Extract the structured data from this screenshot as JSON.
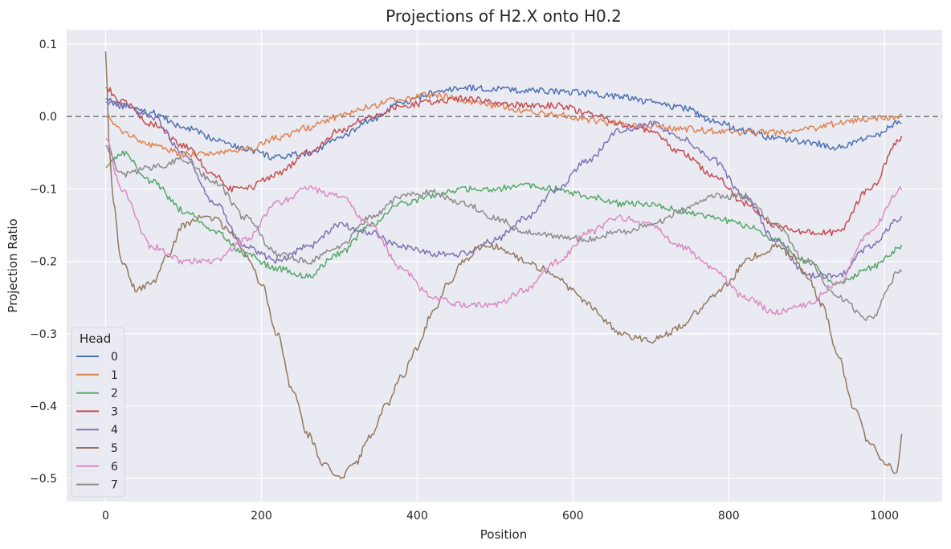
{
  "chart_data": {
    "type": "line",
    "title": "Projections of H2.X onto H0.2",
    "xlabel": "Position",
    "ylabel": "Projection Ratio",
    "xlim": [
      -50,
      1074
    ],
    "ylim": [
      -0.532,
      0.12
    ],
    "xticks": [
      0,
      200,
      400,
      600,
      800,
      1000
    ],
    "xtick_labels": [
      "0",
      "200",
      "400",
      "600",
      "800",
      "1000"
    ],
    "yticks": [
      0.1,
      0.0,
      -0.1,
      -0.2,
      -0.3,
      -0.4,
      -0.5
    ],
    "ytick_labels": [
      "0.1",
      "0.0",
      "−0.1",
      "−0.2",
      "−0.3",
      "−0.4",
      "−0.5"
    ],
    "reference_line": {
      "y": 0.0,
      "style": "dashed",
      "color": "#7f7f86"
    },
    "grid": true,
    "background": "#eaeaf2",
    "legend": {
      "title": "Head",
      "position": "lower-left"
    },
    "series": [
      {
        "name": "0",
        "color": "#4c72b0",
        "x": [
          0,
          20,
          60,
          100,
          140,
          180,
          220,
          260,
          300,
          340,
          380,
          420,
          460,
          500,
          540,
          580,
          620,
          660,
          700,
          740,
          780,
          820,
          860,
          900,
          940,
          980,
          1023
        ],
        "values": [
          0.025,
          0.015,
          0.005,
          -0.015,
          -0.03,
          -0.045,
          -0.057,
          -0.05,
          -0.03,
          -0.005,
          0.018,
          0.032,
          0.04,
          0.038,
          0.036,
          0.035,
          0.032,
          0.028,
          0.02,
          0.012,
          -0.005,
          -0.02,
          -0.03,
          -0.035,
          -0.042,
          -0.03,
          -0.005
        ]
      },
      {
        "name": "1",
        "color": "#dd8452",
        "x": [
          0,
          20,
          60,
          100,
          140,
          180,
          220,
          260,
          300,
          340,
          380,
          420,
          460,
          500,
          540,
          580,
          620,
          660,
          700,
          740,
          780,
          820,
          860,
          900,
          940,
          980,
          1023
        ],
        "values": [
          0.0,
          -0.02,
          -0.04,
          -0.052,
          -0.05,
          -0.045,
          -0.03,
          -0.015,
          0.0,
          0.015,
          0.025,
          0.03,
          0.022,
          0.015,
          0.008,
          0.002,
          -0.005,
          -0.01,
          -0.013,
          -0.017,
          -0.02,
          -0.022,
          -0.022,
          -0.018,
          -0.01,
          -0.003,
          0.0
        ]
      },
      {
        "name": "2",
        "color": "#55a868",
        "x": [
          0,
          20,
          60,
          100,
          140,
          180,
          220,
          260,
          300,
          340,
          380,
          420,
          460,
          500,
          540,
          580,
          620,
          660,
          700,
          740,
          780,
          820,
          860,
          900,
          940,
          980,
          1023
        ],
        "values": [
          -0.07,
          -0.05,
          -0.09,
          -0.13,
          -0.16,
          -0.19,
          -0.21,
          -0.22,
          -0.19,
          -0.15,
          -0.12,
          -0.11,
          -0.1,
          -0.1,
          -0.095,
          -0.1,
          -0.11,
          -0.12,
          -0.12,
          -0.13,
          -0.14,
          -0.15,
          -0.17,
          -0.2,
          -0.23,
          -0.21,
          -0.18
        ]
      },
      {
        "name": "3",
        "color": "#c44e52",
        "x": [
          0,
          20,
          60,
          100,
          140,
          160,
          180,
          220,
          260,
          300,
          340,
          380,
          420,
          460,
          500,
          540,
          580,
          620,
          660,
          700,
          740,
          780,
          820,
          860,
          900,
          940,
          980,
          1023
        ],
        "values": [
          0.04,
          0.02,
          -0.01,
          -0.04,
          -0.08,
          -0.1,
          -0.1,
          -0.08,
          -0.05,
          -0.02,
          0.0,
          0.015,
          0.02,
          0.025,
          0.02,
          0.015,
          0.015,
          0.005,
          -0.01,
          -0.02,
          -0.05,
          -0.08,
          -0.12,
          -0.15,
          -0.16,
          -0.16,
          -0.1,
          -0.03
        ]
      },
      {
        "name": "4",
        "color": "#8172b3",
        "x": [
          0,
          20,
          60,
          100,
          140,
          180,
          220,
          260,
          300,
          340,
          380,
          420,
          460,
          500,
          540,
          580,
          620,
          660,
          700,
          740,
          780,
          820,
          860,
          900,
          940,
          980,
          1023
        ],
        "values": [
          0.02,
          0.015,
          0.0,
          -0.05,
          -0.12,
          -0.18,
          -0.2,
          -0.18,
          -0.15,
          -0.16,
          -0.18,
          -0.19,
          -0.19,
          -0.17,
          -0.14,
          -0.1,
          -0.06,
          -0.02,
          -0.01,
          -0.03,
          -0.06,
          -0.11,
          -0.17,
          -0.22,
          -0.22,
          -0.18,
          -0.14
        ]
      },
      {
        "name": "5",
        "color": "#937860",
        "x": [
          0,
          5,
          10,
          20,
          40,
          60,
          80,
          100,
          120,
          140,
          160,
          180,
          200,
          220,
          240,
          260,
          280,
          300,
          320,
          340,
          360,
          380,
          400,
          420,
          440,
          460,
          480,
          500,
          520,
          540,
          560,
          580,
          600,
          620,
          640,
          660,
          680,
          700,
          720,
          740,
          760,
          780,
          800,
          820,
          840,
          860,
          880,
          900,
          920,
          940,
          960,
          980,
          1000,
          1015,
          1023
        ],
        "values": [
          0.09,
          -0.05,
          -0.12,
          -0.2,
          -0.24,
          -0.23,
          -0.19,
          -0.15,
          -0.14,
          -0.14,
          -0.16,
          -0.19,
          -0.23,
          -0.3,
          -0.38,
          -0.44,
          -0.48,
          -0.5,
          -0.48,
          -0.44,
          -0.4,
          -0.36,
          -0.32,
          -0.27,
          -0.23,
          -0.2,
          -0.18,
          -0.18,
          -0.19,
          -0.2,
          -0.21,
          -0.22,
          -0.24,
          -0.26,
          -0.28,
          -0.3,
          -0.305,
          -0.31,
          -0.3,
          -0.29,
          -0.27,
          -0.25,
          -0.23,
          -0.2,
          -0.19,
          -0.18,
          -0.19,
          -0.22,
          -0.26,
          -0.33,
          -0.4,
          -0.45,
          -0.48,
          -0.49,
          -0.44
        ]
      },
      {
        "name": "6",
        "color": "#da8bc3",
        "x": [
          0,
          20,
          60,
          100,
          140,
          180,
          220,
          260,
          300,
          340,
          380,
          420,
          460,
          500,
          540,
          580,
          620,
          660,
          700,
          740,
          780,
          820,
          860,
          900,
          940,
          980,
          1023
        ],
        "values": [
          -0.03,
          -0.1,
          -0.18,
          -0.2,
          -0.2,
          -0.17,
          -0.12,
          -0.1,
          -0.11,
          -0.15,
          -0.21,
          -0.25,
          -0.26,
          -0.26,
          -0.24,
          -0.2,
          -0.16,
          -0.14,
          -0.15,
          -0.18,
          -0.21,
          -0.25,
          -0.27,
          -0.26,
          -0.23,
          -0.16,
          -0.1
        ]
      },
      {
        "name": "7",
        "color": "#8c8c8c",
        "x": [
          0,
          20,
          60,
          100,
          140,
          180,
          220,
          260,
          300,
          340,
          380,
          420,
          460,
          500,
          540,
          580,
          620,
          660,
          700,
          740,
          780,
          820,
          860,
          900,
          940,
          980,
          1023
        ],
        "values": [
          -0.04,
          -0.08,
          -0.07,
          -0.06,
          -0.09,
          -0.14,
          -0.19,
          -0.2,
          -0.18,
          -0.14,
          -0.11,
          -0.105,
          -0.12,
          -0.14,
          -0.16,
          -0.165,
          -0.17,
          -0.16,
          -0.15,
          -0.13,
          -0.11,
          -0.11,
          -0.15,
          -0.2,
          -0.25,
          -0.28,
          -0.21
        ]
      }
    ]
  }
}
